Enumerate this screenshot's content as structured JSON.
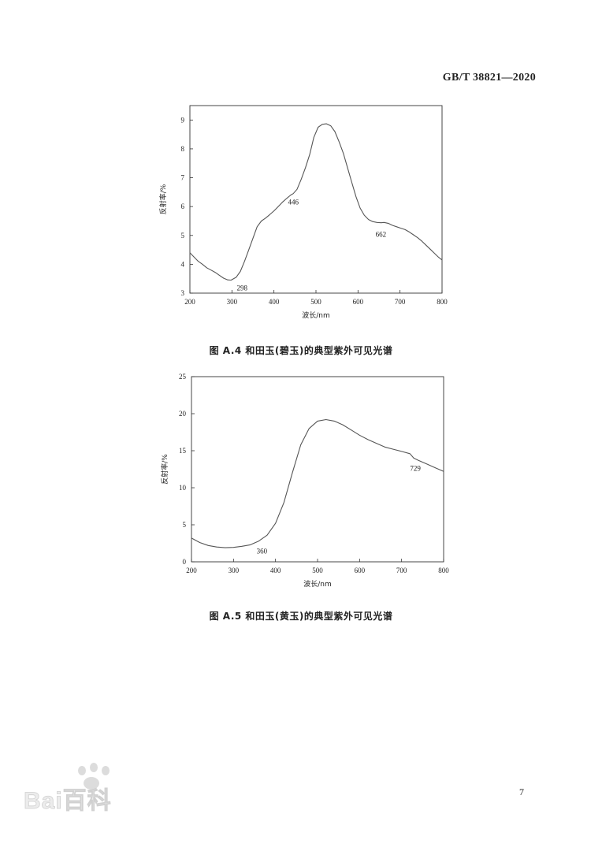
{
  "header": {
    "standard": "GB/T 38821—2020"
  },
  "figures": [
    {
      "caption": "图 A.4   和田玉(碧玉)的典型紫外可见光谱"
    },
    {
      "caption": "图 A.5   和田玉(黄玉)的典型紫外可见光谱"
    }
  ],
  "page_number": "7",
  "watermark": {
    "text": "Bai百科"
  },
  "colors": {
    "line": "#555555",
    "axis": "#333333",
    "text": "#222222"
  },
  "chart_data": [
    {
      "type": "line",
      "title": "",
      "xlabel": "波长/nm",
      "ylabel": "反射率/%",
      "xlim": [
        200,
        800
      ],
      "ylim": [
        3,
        9.5
      ],
      "xticks": [
        200,
        300,
        400,
        500,
        600,
        700,
        800
      ],
      "yticks": [
        3,
        4,
        5,
        6,
        7,
        8,
        9
      ],
      "grid": false,
      "series": [
        {
          "x": [
            200,
            210,
            220,
            230,
            240,
            250,
            260,
            270,
            280,
            290,
            298,
            310,
            320,
            330,
            340,
            350,
            360,
            370,
            380,
            390,
            400,
            410,
            420,
            430,
            440,
            446,
            455,
            465,
            475,
            485,
            495,
            505,
            515,
            525,
            535,
            545,
            555,
            565,
            575,
            585,
            595,
            605,
            615,
            625,
            635,
            645,
            655,
            662,
            672,
            682,
            692,
            702,
            712,
            722,
            732,
            742,
            752,
            762,
            772,
            782,
            792,
            800
          ],
          "y": [
            4.4,
            4.25,
            4.1,
            4.0,
            3.88,
            3.8,
            3.72,
            3.62,
            3.52,
            3.46,
            3.45,
            3.55,
            3.75,
            4.1,
            4.5,
            4.9,
            5.3,
            5.5,
            5.6,
            5.72,
            5.85,
            6.0,
            6.15,
            6.28,
            6.4,
            6.45,
            6.6,
            6.95,
            7.35,
            7.8,
            8.4,
            8.75,
            8.85,
            8.87,
            8.8,
            8.6,
            8.25,
            7.85,
            7.35,
            6.85,
            6.35,
            5.95,
            5.7,
            5.55,
            5.48,
            5.45,
            5.44,
            5.45,
            5.42,
            5.35,
            5.3,
            5.25,
            5.2,
            5.12,
            5.02,
            4.92,
            4.8,
            4.66,
            4.52,
            4.38,
            4.24,
            4.15
          ]
        }
      ],
      "annotations": [
        {
          "x": 298,
          "y": 3.45,
          "text": "298",
          "dx": 14,
          "dy": 13
        },
        {
          "x": 446,
          "y": 6.45,
          "text": "446",
          "dx": 0,
          "dy": 14
        },
        {
          "x": 662,
          "y": 5.45,
          "text": "662",
          "dx": -4,
          "dy": 18
        }
      ]
    },
    {
      "type": "line",
      "title": "",
      "xlabel": "波长/nm",
      "ylabel": "反射率/%",
      "xlim": [
        200,
        800
      ],
      "ylim": [
        0,
        25
      ],
      "xticks": [
        200,
        300,
        400,
        500,
        600,
        700,
        800
      ],
      "yticks": [
        0,
        5,
        10,
        15,
        20,
        25
      ],
      "grid": false,
      "series": [
        {
          "x": [
            200,
            220,
            240,
            260,
            280,
            300,
            320,
            340,
            360,
            380,
            400,
            420,
            440,
            460,
            480,
            500,
            520,
            540,
            560,
            580,
            600,
            620,
            640,
            660,
            680,
            700,
            720,
            729,
            740,
            760,
            780,
            800
          ],
          "y": [
            3.2,
            2.6,
            2.2,
            2.0,
            1.9,
            1.95,
            2.1,
            2.3,
            2.8,
            3.6,
            5.2,
            8.0,
            12.0,
            15.8,
            18.0,
            19.0,
            19.2,
            19.0,
            18.5,
            17.8,
            17.1,
            16.5,
            16.0,
            15.5,
            15.2,
            14.9,
            14.6,
            14.0,
            13.7,
            13.2,
            12.7,
            12.2
          ]
        }
      ],
      "annotations": [
        {
          "x": 360,
          "y": 2.8,
          "text": "360",
          "dx": 4,
          "dy": 16
        },
        {
          "x": 729,
          "y": 14.0,
          "text": "729",
          "dx": 2,
          "dy": 16
        }
      ]
    }
  ]
}
